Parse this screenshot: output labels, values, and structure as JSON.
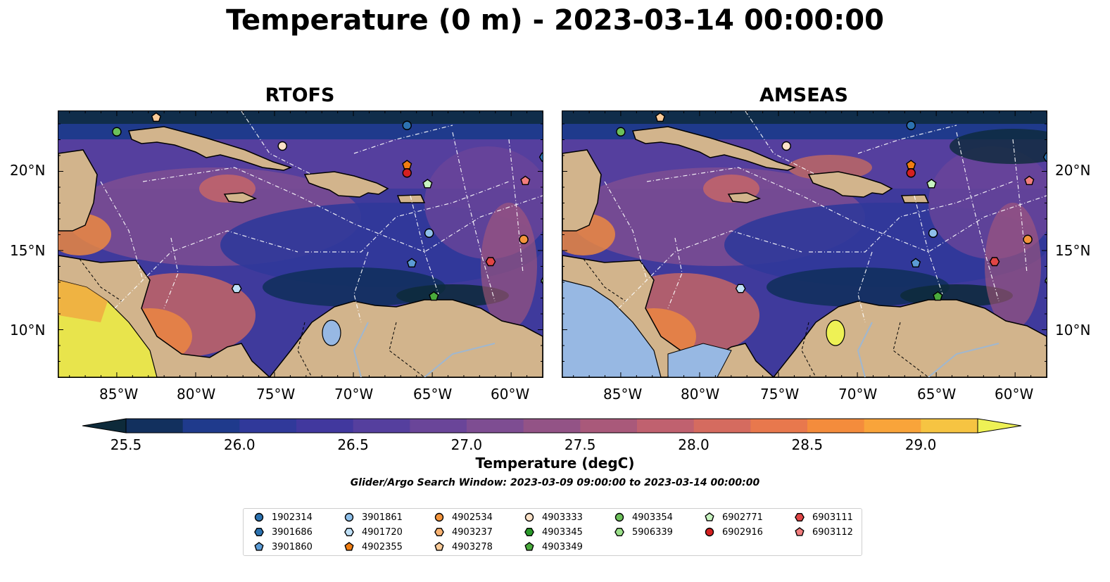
{
  "figure": {
    "title": "Temperature (0 m) - 2023-03-14 00:00:00",
    "search_window": "Glider/Argo Search Window: 2023-03-09 09:00:00 to 2023-03-14 00:00:00"
  },
  "panels": [
    {
      "title": "RTOFS"
    },
    {
      "title": "AMSEAS"
    }
  ],
  "axes": {
    "lon_ticks": [
      "85°W",
      "80°W",
      "75°W",
      "70°W",
      "65°W",
      "60°W"
    ],
    "lat_ticks": [
      "20°N",
      "15°N",
      "10°N"
    ]
  },
  "colorbar": {
    "label": "Temperature (degC)",
    "ticks": [
      "25.5",
      "26.0",
      "26.5",
      "27.0",
      "27.5",
      "28.0",
      "28.5",
      "29.0"
    ],
    "colors": [
      "#0d2a3a",
      "#12305e",
      "#1f3a8c",
      "#30399a",
      "#41389e",
      "#553f9e",
      "#6a4599",
      "#7e4d92",
      "#935386",
      "#a9597a",
      "#c0616f",
      "#d56b5f",
      "#e8784d",
      "#f48c3c",
      "#f9a43a",
      "#f6c442",
      "#eef155"
    ]
  },
  "legend": {
    "columns": [
      [
        {
          "label": "1902314",
          "shape": "circle",
          "color": "#2c72b0"
        },
        {
          "label": "3901686",
          "shape": "hexagon",
          "color": "#2c72b0"
        },
        {
          "label": "3901860",
          "shape": "pentagon",
          "color": "#5b9bd5"
        }
      ],
      [
        {
          "label": "3901861",
          "shape": "circle",
          "color": "#8ec0ea"
        },
        {
          "label": "4901720",
          "shape": "hexagon",
          "color": "#bfe0f7"
        },
        {
          "label": "4902355",
          "shape": "pentagon",
          "color": "#f07d12"
        }
      ],
      [
        {
          "label": "4902534",
          "shape": "circle",
          "color": "#f4943b"
        },
        {
          "label": "4903237",
          "shape": "hexagon",
          "color": "#f8b271"
        },
        {
          "label": "4903278",
          "shape": "pentagon",
          "color": "#fbcb98"
        }
      ],
      [
        {
          "label": "4903333",
          "shape": "circle",
          "color": "#fde2c8"
        },
        {
          "label": "4903345",
          "shape": "hexagon",
          "color": "#2a9a2a"
        },
        {
          "label": "4903349",
          "shape": "pentagon",
          "color": "#4aab3c"
        }
      ],
      [
        {
          "label": "4903354",
          "shape": "circle",
          "color": "#6cc05a"
        },
        {
          "label": "5906339",
          "shape": "hexagon",
          "color": "#9be08a"
        }
      ],
      [
        {
          "label": "6902771",
          "shape": "pentagon",
          "color": "#c8f4c0"
        },
        {
          "label": "6902916",
          "shape": "circle",
          "color": "#d42020"
        }
      ],
      [
        {
          "label": "6903111",
          "shape": "hexagon",
          "color": "#e04545"
        },
        {
          "label": "6903112",
          "shape": "pentagon",
          "color": "#f27d7d"
        }
      ]
    ]
  },
  "markers": [
    {
      "label": "4903354",
      "shape": "circle",
      "color": "#6cc05a",
      "lon": -85.0,
      "lat": 22.5
    },
    {
      "label": "4903278",
      "shape": "pentagon",
      "color": "#fbcb98",
      "lon": -82.5,
      "lat": 23.4
    },
    {
      "label": "1902314",
      "shape": "circle",
      "color": "#2c72b0",
      "lon": -66.6,
      "lat": 22.9
    },
    {
      "label": "4903333",
      "shape": "circle",
      "color": "#fde2c8",
      "lon": -74.5,
      "lat": 21.6
    },
    {
      "label": "4902355",
      "shape": "pentagon",
      "color": "#f07d12",
      "lon": -66.6,
      "lat": 20.4
    },
    {
      "label": "6902916",
      "shape": "circle",
      "color": "#d42020",
      "lon": -66.6,
      "lat": 19.9
    },
    {
      "label": "6902771",
      "shape": "pentagon",
      "color": "#c8f4c0",
      "lon": -65.3,
      "lat": 19.2
    },
    {
      "label": "6903112",
      "shape": "pentagon",
      "color": "#f27d7d",
      "lon": -59.1,
      "lat": 19.4
    },
    {
      "label": "3901686",
      "shape": "hexagon",
      "color": "#2c72b0",
      "lon": -57.9,
      "lat": 20.9
    },
    {
      "label": "3901861",
      "shape": "circle",
      "color": "#8ec0ea",
      "lon": -65.2,
      "lat": 16.1
    },
    {
      "label": "4902534",
      "shape": "circle",
      "color": "#f4943b",
      "lon": -59.2,
      "lat": 15.7
    },
    {
      "label": "6903111",
      "shape": "hexagon",
      "color": "#e04545",
      "lon": -61.3,
      "lat": 14.3
    },
    {
      "label": "3901860",
      "shape": "pentagon",
      "color": "#5b9bd5",
      "lon": -66.3,
      "lat": 14.2
    },
    {
      "label": "4901720",
      "shape": "hexagon",
      "color": "#bfe0f7",
      "lon": -77.4,
      "lat": 12.6
    },
    {
      "label": "4903349",
      "shape": "pentagon",
      "color": "#4aab3c",
      "lon": -64.9,
      "lat": 12.1
    },
    {
      "label": "5906339",
      "shape": "hexagon",
      "color": "#9be08a",
      "lon": -57.8,
      "lat": 13.1
    }
  ]
}
